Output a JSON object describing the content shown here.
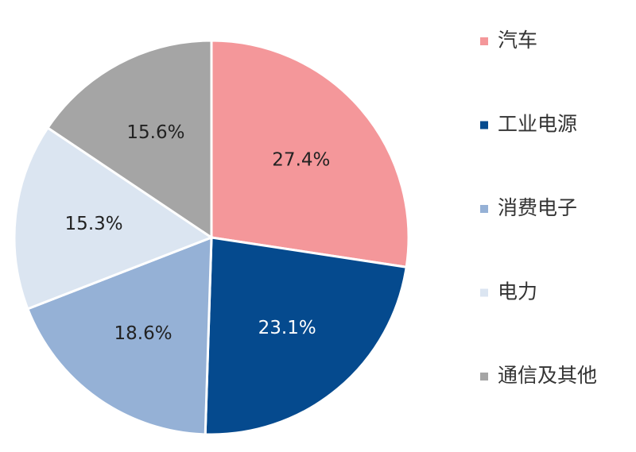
{
  "chart_data": {
    "type": "pie",
    "categories": [
      "汽车",
      "工业电源",
      "消费电子",
      "电力",
      "通信及其他"
    ],
    "values": [
      27.4,
      23.1,
      18.6,
      15.3,
      15.6
    ],
    "value_labels": [
      "27.4%",
      "23.1%",
      "18.6%",
      "15.3%",
      "15.6%"
    ],
    "colors": [
      "#f4979a",
      "#054a8e",
      "#95b1d6",
      "#dbe5f1",
      "#a5a5a5"
    ],
    "legend": "right"
  }
}
